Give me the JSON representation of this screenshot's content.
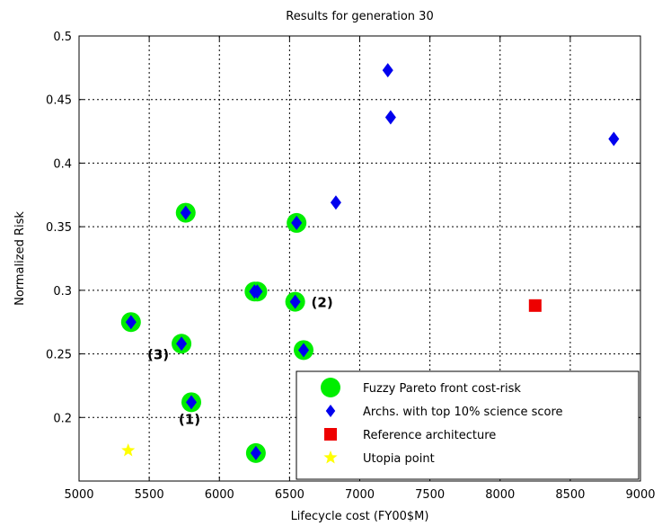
{
  "chart_data": {
    "type": "scatter",
    "title": "Results for generation 30",
    "xlabel": "Lifecycle cost (FY00$M)",
    "ylabel": "Normalized Risk",
    "xlim": [
      5000,
      9000
    ],
    "ylim": [
      0.15,
      0.5
    ],
    "xticks": [
      5000,
      5500,
      6000,
      6500,
      7000,
      7500,
      8000,
      8500,
      9000
    ],
    "yticks": [
      0.2,
      0.25,
      0.3,
      0.35,
      0.4,
      0.45,
      0.5
    ],
    "grid": true,
    "legend_position": "bottom-right",
    "series": [
      {
        "name": "Fuzzy Pareto front cost-risk",
        "marker": "circle",
        "color": "#00ee00",
        "points": [
          [
            5370,
            0.275
          ],
          [
            5730,
            0.258
          ],
          [
            5760,
            0.361
          ],
          [
            5800,
            0.212
          ],
          [
            6250,
            0.299
          ],
          [
            6270,
            0.299
          ],
          [
            6260,
            0.172
          ],
          [
            6550,
            0.353
          ],
          [
            6540,
            0.291
          ],
          [
            6600,
            0.253
          ]
        ]
      },
      {
        "name": "Archs. with top 10% science score",
        "marker": "diamond",
        "color": "#0000ee",
        "points": [
          [
            5370,
            0.275
          ],
          [
            5730,
            0.258
          ],
          [
            5760,
            0.361
          ],
          [
            5800,
            0.212
          ],
          [
            6250,
            0.299
          ],
          [
            6270,
            0.299
          ],
          [
            6260,
            0.172
          ],
          [
            6550,
            0.353
          ],
          [
            6540,
            0.291
          ],
          [
            6600,
            0.253
          ],
          [
            6830,
            0.369
          ],
          [
            7200,
            0.473
          ],
          [
            7220,
            0.436
          ],
          [
            8810,
            0.419
          ]
        ]
      },
      {
        "name": "Reference architecture",
        "marker": "square",
        "color": "#ee0000",
        "points": [
          [
            8250,
            0.288
          ]
        ]
      },
      {
        "name": "Utopia point",
        "marker": "star",
        "color": "#ffff00",
        "points": [
          [
            5350,
            0.174
          ]
        ]
      }
    ],
    "annotations": [
      {
        "text": "(1)",
        "x": 5800,
        "y": 0.212
      },
      {
        "text": "(2)",
        "x": 6540,
        "y": 0.291
      },
      {
        "text": "(3)",
        "x": 5730,
        "y": 0.258
      }
    ]
  }
}
